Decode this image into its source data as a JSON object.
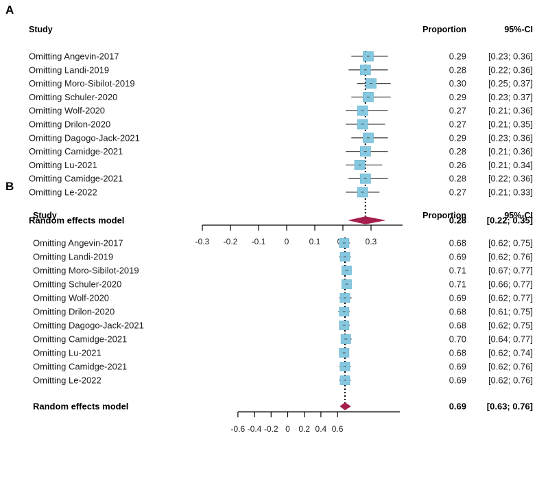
{
  "chart_data": [
    {
      "type": "forest",
      "panel": "A",
      "header": {
        "study": "Study",
        "proportion": "Proportion",
        "ci": "95%-CI"
      },
      "studies": [
        {
          "label": "Omitting Angevin-2017",
          "est": 0.29,
          "lo": 0.23,
          "hi": 0.36,
          "prop_text": "0.29",
          "ci_text": "[0.23; 0.36]"
        },
        {
          "label": "Omitting Landi-2019",
          "est": 0.28,
          "lo": 0.22,
          "hi": 0.36,
          "prop_text": "0.28",
          "ci_text": "[0.22; 0.36]"
        },
        {
          "label": "Omitting Moro-Sibilot-2019",
          "est": 0.3,
          "lo": 0.25,
          "hi": 0.37,
          "prop_text": "0.30",
          "ci_text": "[0.25; 0.37]"
        },
        {
          "label": "Omitting Schuler-2020",
          "est": 0.29,
          "lo": 0.23,
          "hi": 0.37,
          "prop_text": "0.29",
          "ci_text": "[0.23; 0.37]"
        },
        {
          "label": "Omitting Wolf-2020",
          "est": 0.27,
          "lo": 0.21,
          "hi": 0.36,
          "prop_text": "0.27",
          "ci_text": "[0.21; 0.36]"
        },
        {
          "label": "Omitting Drilon-2020",
          "est": 0.27,
          "lo": 0.21,
          "hi": 0.35,
          "prop_text": "0.27",
          "ci_text": "[0.21; 0.35]"
        },
        {
          "label": "Omitting Dagogo-Jack-2021",
          "est": 0.29,
          "lo": 0.23,
          "hi": 0.36,
          "prop_text": "0.29",
          "ci_text": "[0.23; 0.36]"
        },
        {
          "label": "Omitting Camidge-2021",
          "est": 0.28,
          "lo": 0.21,
          "hi": 0.36,
          "prop_text": "0.28",
          "ci_text": "[0.21; 0.36]"
        },
        {
          "label": "Omitting Lu-2021",
          "est": 0.26,
          "lo": 0.21,
          "hi": 0.34,
          "prop_text": "0.26",
          "ci_text": "[0.21; 0.34]"
        },
        {
          "label": "Omitting Camidge-2021",
          "est": 0.28,
          "lo": 0.22,
          "hi": 0.36,
          "prop_text": "0.28",
          "ci_text": "[0.22; 0.36]"
        },
        {
          "label": "Omitting Le-2022",
          "est": 0.27,
          "lo": 0.21,
          "hi": 0.33,
          "prop_text": "0.27",
          "ci_text": "[0.21; 0.33]"
        }
      ],
      "summary": {
        "label": "Random effects model",
        "est": 0.28,
        "lo": 0.22,
        "hi": 0.35,
        "prop_text": "0.28",
        "ci_text": "[0.22; 0.35]"
      },
      "xaxis": {
        "min": -0.3,
        "max": 0.3,
        "ticks": [
          -0.3,
          -0.2,
          -0.1,
          0,
          0.1,
          0.2,
          0.3
        ],
        "tick_labels": [
          "-0.3",
          "-0.2",
          "-0.1",
          "0",
          "0.1",
          "0.2",
          "0.3"
        ]
      }
    },
    {
      "type": "forest",
      "panel": "B",
      "header": {
        "study": "Study",
        "proportion": "Proportion",
        "ci": "95%-CI"
      },
      "studies": [
        {
          "label": "Omitting Angevin-2017",
          "est": 0.68,
          "lo": 0.62,
          "hi": 0.75,
          "prop_text": "0.68",
          "ci_text": "[0.62; 0.75]"
        },
        {
          "label": "Omitting Landi-2019",
          "est": 0.69,
          "lo": 0.62,
          "hi": 0.76,
          "prop_text": "0.69",
          "ci_text": "[0.62; 0.76]"
        },
        {
          "label": "Omitting Moro-Sibilot-2019",
          "est": 0.71,
          "lo": 0.67,
          "hi": 0.77,
          "prop_text": "0.71",
          "ci_text": "[0.67; 0.77]"
        },
        {
          "label": "Omitting Schuler-2020",
          "est": 0.71,
          "lo": 0.66,
          "hi": 0.77,
          "prop_text": "0.71",
          "ci_text": "[0.66; 0.77]"
        },
        {
          "label": "Omitting Wolf-2020",
          "est": 0.69,
          "lo": 0.62,
          "hi": 0.77,
          "prop_text": "0.69",
          "ci_text": "[0.62; 0.77]"
        },
        {
          "label": "Omitting Drilon-2020",
          "est": 0.68,
          "lo": 0.61,
          "hi": 0.75,
          "prop_text": "0.68",
          "ci_text": "[0.61; 0.75]"
        },
        {
          "label": "Omitting Dagogo-Jack-2021",
          "est": 0.68,
          "lo": 0.62,
          "hi": 0.75,
          "prop_text": "0.68",
          "ci_text": "[0.62; 0.75]"
        },
        {
          "label": "Omitting Camidge-2021",
          "est": 0.7,
          "lo": 0.64,
          "hi": 0.77,
          "prop_text": "0.70",
          "ci_text": "[0.64; 0.77]"
        },
        {
          "label": "Omitting Lu-2021",
          "est": 0.68,
          "lo": 0.62,
          "hi": 0.74,
          "prop_text": "0.68",
          "ci_text": "[0.62; 0.74]"
        },
        {
          "label": "Omitting Camidge-2021",
          "est": 0.69,
          "lo": 0.62,
          "hi": 0.76,
          "prop_text": "0.69",
          "ci_text": "[0.62; 0.76]"
        },
        {
          "label": "Omitting Le-2022",
          "est": 0.69,
          "lo": 0.62,
          "hi": 0.76,
          "prop_text": "0.69",
          "ci_text": "[0.62; 0.76]"
        }
      ],
      "summary": {
        "label": "Random effects model",
        "est": 0.69,
        "lo": 0.63,
        "hi": 0.76,
        "prop_text": "0.69",
        "ci_text": "[0.63; 0.76]"
      },
      "xaxis": {
        "min": -0.6,
        "max": 0.6,
        "ticks": [
          -0.6,
          -0.4,
          -0.2,
          0,
          0.2,
          0.4,
          0.6
        ],
        "tick_labels": [
          "-0.6",
          "-0.4",
          "-0.2",
          "0",
          "0.2",
          "0.4",
          "0.6"
        ]
      }
    }
  ],
  "colors": {
    "square_fill": "#85c8e0",
    "square_stroke": "#6fb7d3",
    "ci_line": "#4a4a4a",
    "diamond": "#a61e4d",
    "dotted_line": "#000000"
  }
}
